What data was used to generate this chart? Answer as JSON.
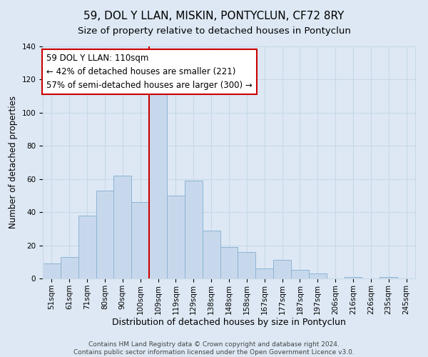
{
  "title": "59, DOL Y LLAN, MISKIN, PONTYCLUN, CF72 8RY",
  "subtitle": "Size of property relative to detached houses in Pontyclun",
  "xlabel": "Distribution of detached houses by size in Pontyclun",
  "ylabel": "Number of detached properties",
  "footer1": "Contains HM Land Registry data © Crown copyright and database right 2024.",
  "footer2": "Contains public sector information licensed under the Open Government Licence v3.0.",
  "categories": [
    "51sqm",
    "61sqm",
    "71sqm",
    "80sqm",
    "90sqm",
    "100sqm",
    "109sqm",
    "119sqm",
    "129sqm",
    "138sqm",
    "148sqm",
    "158sqm",
    "167sqm",
    "177sqm",
    "187sqm",
    "197sqm",
    "206sqm",
    "216sqm",
    "226sqm",
    "235sqm",
    "245sqm"
  ],
  "values": [
    9,
    13,
    38,
    53,
    62,
    46,
    113,
    50,
    59,
    29,
    19,
    16,
    6,
    11,
    5,
    3,
    0,
    1,
    0,
    1,
    0
  ],
  "bar_color": "#c8d8ec",
  "bar_edge_color": "#8ab4d4",
  "vline_x": 5.5,
  "vline_color": "#cc0000",
  "annotation_line1": "59 DOL Y LLAN: 110sqm",
  "annotation_line2": "← 42% of detached houses are smaller (221)",
  "annotation_line3": "57% of semi-detached houses are larger (300) →",
  "annotation_box_edgecolor": "#cc0000",
  "ylim": [
    0,
    140
  ],
  "yticks": [
    0,
    20,
    40,
    60,
    80,
    100,
    120,
    140
  ],
  "grid_color": "#c8d8e8",
  "background_color": "#dde8f4",
  "title_fontsize": 11,
  "subtitle_fontsize": 9.5,
  "xlabel_fontsize": 9,
  "ylabel_fontsize": 8.5,
  "tick_fontsize": 7.5,
  "annotation_fontsize": 8.5,
  "footer_fontsize": 6.5
}
